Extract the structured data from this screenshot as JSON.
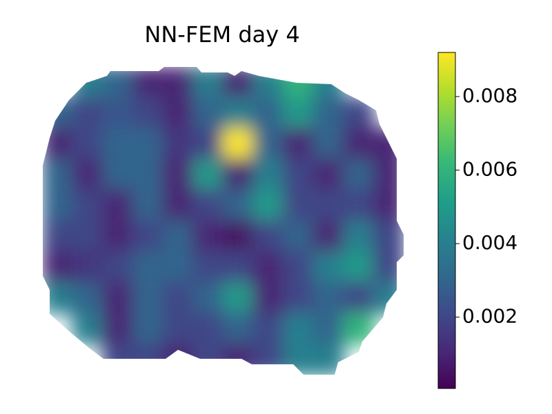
{
  "chart_data": {
    "type": "heatmap",
    "title": "NN-FEM day 4",
    "colormap": "viridis",
    "clim": [
      6e-05,
      0.0092
    ],
    "colorbar_ticks": [
      0.002,
      0.004,
      0.006,
      0.008
    ],
    "values": [
      [
        null,
        0.004,
        0.003,
        0.001,
        0.001,
        0.004,
        0.001,
        0.004,
        0.006,
        0.004,
        null,
        null
      ],
      [
        0.003,
        0.002,
        0.0025,
        0.002,
        0.001,
        0.003,
        0.004,
        0.003,
        0.005,
        0.003,
        0.002,
        null
      ],
      [
        0.001,
        0.002,
        0.003,
        0.003,
        0.0015,
        0.002,
        0.0092,
        0.003,
        0.001,
        0.003,
        0.001,
        0.001
      ],
      [
        0.003,
        0.001,
        0.003,
        0.003,
        0.001,
        0.005,
        0.001,
        0.004,
        0.002,
        0.001,
        0.003,
        0.001
      ],
      [
        0.003,
        0.002,
        0.001,
        0.003,
        0.001,
        0.002,
        0.003,
        0.005,
        0.002,
        0.002,
        0.002,
        0.001
      ],
      [
        0.002,
        0.002,
        0.001,
        0.002,
        0.003,
        0.001,
        0.0005,
        0.002,
        0.003,
        0.001,
        0.004,
        0.002
      ],
      [
        0.001,
        0.0015,
        0.002,
        0.003,
        0.003,
        0.002,
        0.002,
        0.001,
        0.002,
        0.004,
        0.005,
        0.002
      ],
      [
        0.004,
        0.003,
        0.001,
        0.003,
        0.002,
        0.003,
        0.005,
        0.001,
        0.002,
        0.003,
        0.002,
        0.004
      ],
      [
        null,
        0.004,
        0.001,
        0.003,
        0.002,
        0.002,
        0.003,
        0.002,
        0.004,
        0.003,
        0.006,
        null
      ],
      [
        null,
        null,
        0.002,
        0.002,
        0.001,
        0.002,
        0.001,
        0.002,
        0.004,
        0.004,
        null,
        null
      ]
    ]
  }
}
